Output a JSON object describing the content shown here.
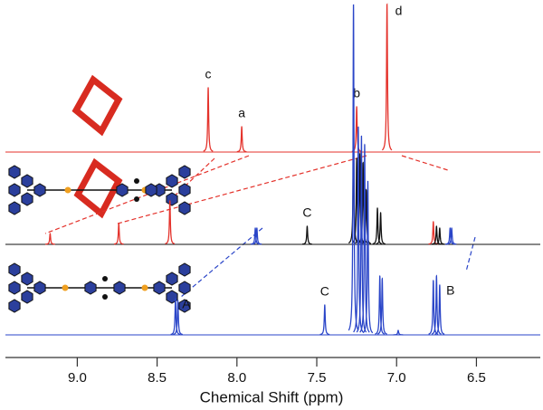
{
  "chart_data": {
    "type": "spectrum",
    "x_label": "Chemical Shift (ppm)",
    "xlim": [
      9.45,
      6.1
    ],
    "xticks": [
      {
        "value": 9,
        "label": "9.0"
      },
      8.5,
      {
        "value": 8,
        "label": "8.0"
      },
      7.5,
      {
        "value": 7,
        "label": "7.0"
      },
      6.5
    ],
    "series": [
      {
        "color": "#e4322b",
        "x": [
          8.18,
          7.97,
          7.25,
          7.06
        ],
        "values": [
          71,
          28,
          50,
          163
        ],
        "peak_labels": [
          "c",
          "a",
          "b",
          "d"
        ]
      },
      {
        "color": "#111111",
        "x": [
          9.17,
          8.74,
          8.42,
          7.885,
          7.875,
          7.56,
          7.27,
          7.25,
          7.23,
          7.21,
          7.19,
          7.12,
          7.1,
          6.77,
          6.75,
          6.73,
          6.665,
          6.655
        ],
        "values": [
          12,
          23,
          48,
          18,
          18,
          20,
          110,
          95,
          100,
          90,
          60,
          40,
          35,
          25,
          20,
          18,
          18,
          18
        ],
        "colors": [
          "#e4322b",
          "#e4322b",
          "#e4322b",
          "#2a45c8",
          "#2a45c8",
          "#111111",
          "#111111",
          "#111111",
          "#111111",
          "#111111",
          "#111111",
          "#111111",
          "#111111",
          "#e4322b",
          "#111111",
          "#111111",
          "#2a45c8",
          "#2a45c8"
        ],
        "peak_labels": [
          null,
          null,
          null,
          null,
          null,
          "C",
          null,
          null,
          null,
          null,
          null,
          null,
          null,
          null,
          null,
          null,
          null,
          null
        ]
      },
      {
        "color": "#2a45c8",
        "x": [
          8.385,
          8.37,
          7.45,
          7.27,
          7.24,
          7.22,
          7.2,
          7.18,
          7.105,
          7.09,
          6.99,
          6.77,
          6.75,
          6.73
        ],
        "values": [
          40,
          38,
          33,
          365,
          230,
          220,
          210,
          170,
          65,
          62,
          5,
          60,
          65,
          55
        ],
        "peak_labels": [
          "A",
          null,
          "C",
          null,
          null,
          null,
          null,
          null,
          null,
          null,
          null,
          null,
          null,
          "B"
        ]
      }
    ]
  }
}
